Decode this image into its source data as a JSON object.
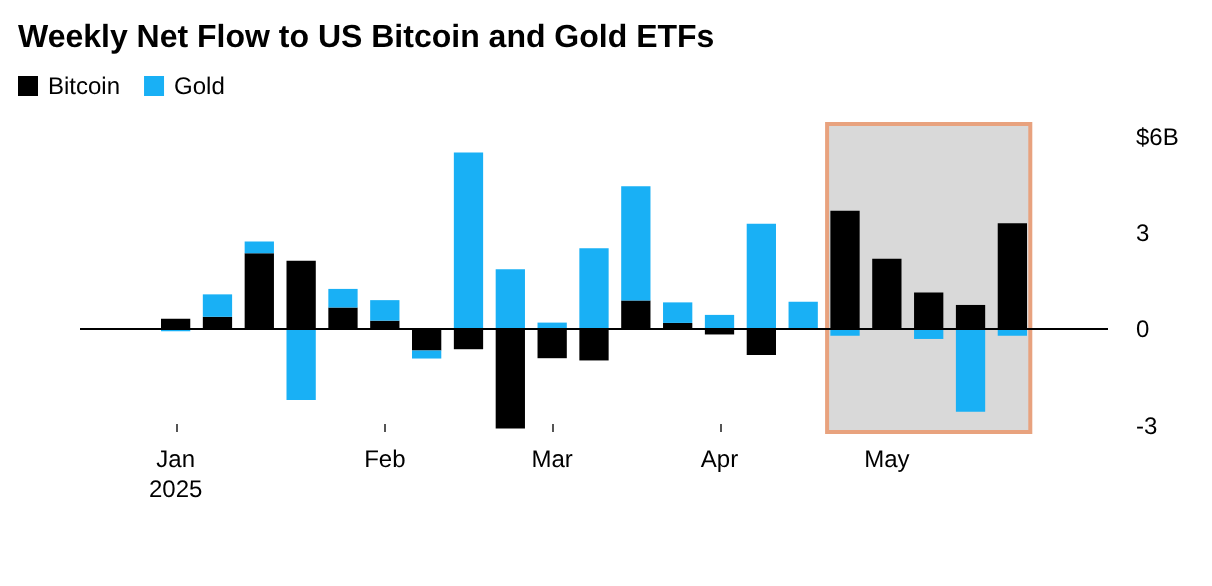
{
  "chart_data": {
    "type": "bar",
    "title": "Weekly Net Flow to US Bitcoin and Gold ETFs",
    "stacked": true,
    "x": [
      "2025-01-03",
      "2025-01-10",
      "2025-01-17",
      "2025-01-24",
      "2025-01-31",
      "2025-02-07",
      "2025-02-14",
      "2025-02-21",
      "2025-02-28",
      "2025-03-07",
      "2025-03-14",
      "2025-03-21",
      "2025-03-28",
      "2025-04-04",
      "2025-04-11",
      "2025-04-18",
      "2025-04-25",
      "2025-05-02",
      "2025-05-09",
      "2025-05-16",
      "2025-05-23"
    ],
    "series": [
      {
        "name": "Bitcoin",
        "color": "#000000",
        "values": [
          0.33,
          0.39,
          2.37,
          2.14,
          0.68,
          0.27,
          -0.66,
          -0.62,
          -3.09,
          -0.9,
          -0.97,
          0.9,
          0.2,
          -0.16,
          -0.8,
          0,
          3.7,
          2.2,
          1.15,
          0.76,
          3.31
        ]
      },
      {
        "name": "Gold",
        "color": "#19b0f5",
        "values": [
          -0.06,
          0.7,
          0.37,
          -2.2,
          0.58,
          0.64,
          -0.25,
          5.51,
          1.87,
          0.21,
          2.53,
          3.56,
          0.64,
          0.45,
          3.29,
          0.86,
          -0.2,
          0,
          -0.3,
          -2.57,
          -0.2
        ]
      }
    ],
    "xlim": [
      "2024-12-18",
      "2025-06-08"
    ],
    "xticks": [
      {
        "value": "2025-01-03",
        "label": "Jan\n2025"
      },
      {
        "value": "2025-02-07",
        "label": "Feb"
      },
      {
        "value": "2025-03-07",
        "label": "Mar"
      },
      {
        "value": "2025-04-04",
        "label": "Apr"
      },
      {
        "value": "2025-05-02",
        "label": "May"
      }
    ],
    "ylim": [
      -3.2,
      6.4
    ],
    "yticks": [
      -3,
      0,
      3,
      {
        "value": 6,
        "label": "$6B"
      }
    ],
    "bands": [
      {
        "axis": "x",
        "from": "2025-04-22",
        "to": "2025-05-26",
        "color": "#d9d9d9"
      }
    ],
    "ref_lines": [
      {
        "axis": "y",
        "value": 0,
        "color": "#000000"
      }
    ],
    "grid": false,
    "legend": "top left"
  }
}
